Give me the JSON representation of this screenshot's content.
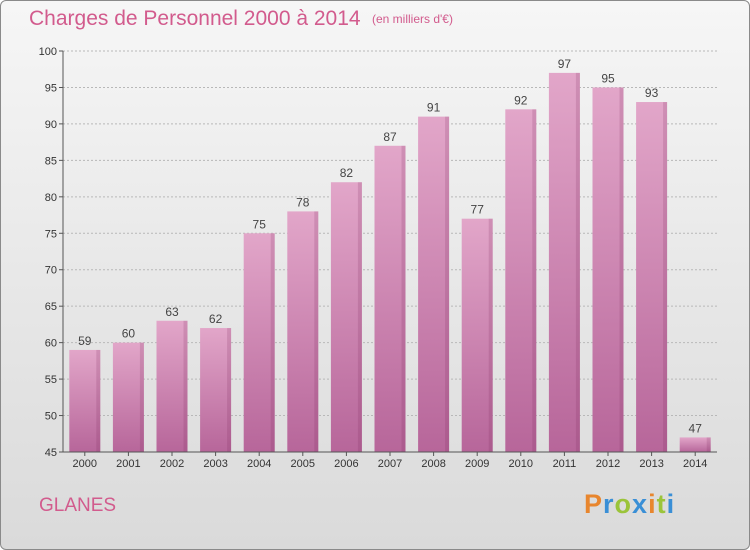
{
  "title": "Charges de Personnel 2000 à 2014",
  "subtitle": "(en milliers d'€)",
  "place": "GLANES",
  "logo": {
    "letters": [
      "P",
      "r",
      "o",
      "x",
      "i",
      "t",
      "i"
    ],
    "colors": [
      "#e8862e",
      "#3a8fd6",
      "#9bc43a",
      "#3a8fd6",
      "#e8862e",
      "#9bc43a",
      "#3a8fd6"
    ]
  },
  "colors": {
    "bar_top": "#e2a6c9",
    "bar_bottom": "#b7669a",
    "text": "#d25b8d"
  },
  "chart_data": {
    "type": "bar",
    "title": "Charges de Personnel 2000 à 2014",
    "subtitle": "(en milliers d'€)",
    "categories": [
      "2000",
      "2001",
      "2002",
      "2003",
      "2004",
      "2005",
      "2006",
      "2007",
      "2008",
      "2009",
      "2010",
      "2011",
      "2012",
      "2013",
      "2014"
    ],
    "values": [
      59,
      60,
      63,
      62,
      75,
      78,
      82,
      87,
      91,
      77,
      92,
      97,
      95,
      93,
      47
    ],
    "ylim": [
      45,
      100
    ],
    "yticks": [
      45,
      50,
      55,
      60,
      65,
      70,
      75,
      80,
      85,
      90,
      95,
      100
    ],
    "grid": "horizontal dashed",
    "xlabel": "",
    "ylabel": ""
  }
}
